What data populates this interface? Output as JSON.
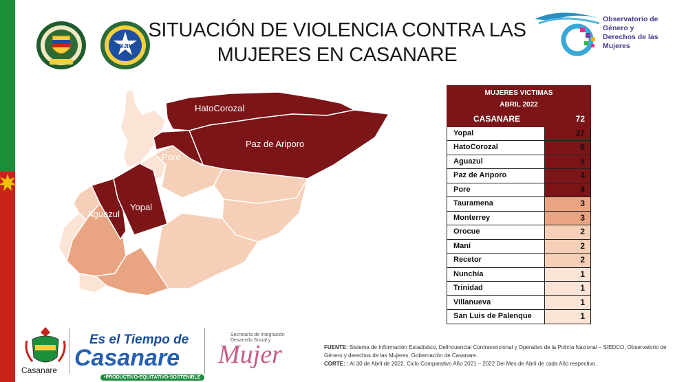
{
  "title": {
    "line1": "SITUACIÓN DE VIOLENCIA CONTRA LAS",
    "line2": "MUJERES EN CASANARE"
  },
  "observatorio": {
    "line1": "Observatorio de",
    "line2": "Género y",
    "line3": "Derechos de las",
    "line4": "Mujeres"
  },
  "emblems": {
    "dijin_label": "DIJIN"
  },
  "map": {
    "labels": {
      "hatocorozal": "HatoCorozal",
      "paz_de_ariporo": "Paz de Ariporo",
      "pore": "Pore",
      "aguazul": "Aguazul",
      "yopal": "Yopal"
    },
    "colors": {
      "high": "#7b1518",
      "mid": "#e9a582",
      "low": "#f2c9ad",
      "lowest": "#fae6da"
    }
  },
  "table": {
    "header_line1": "MUJERES VICTIMAS",
    "header_line2": "ABRIL 2022",
    "total": {
      "name": "CASANARE",
      "value": "72"
    },
    "rows": [
      {
        "name": "Yopal",
        "value": "37",
        "color": "#7b1518"
      },
      {
        "name": "HatoCorozal",
        "value": "6",
        "color": "#7b1518"
      },
      {
        "name": "Aguazul",
        "value": "5",
        "color": "#7b1518"
      },
      {
        "name": "Paz de Ariporo",
        "value": "4",
        "color": "#7b1518"
      },
      {
        "name": "Pore",
        "value": "4",
        "color": "#7b1518"
      },
      {
        "name": "Tauramena",
        "value": "3",
        "color": "#e9a582"
      },
      {
        "name": "Monterrey",
        "value": "3",
        "color": "#e9a582"
      },
      {
        "name": "Orocue",
        "value": "2",
        "color": "#f5cfb7"
      },
      {
        "name": "Maní",
        "value": "2",
        "color": "#f5cfb7"
      },
      {
        "name": "Recetor",
        "value": "2",
        "color": "#f5cfb7"
      },
      {
        "name": "Nunchía",
        "value": "1",
        "color": "#fbe3d6"
      },
      {
        "name": "Trinidad",
        "value": "1",
        "color": "#fbe3d6"
      },
      {
        "name": "Villanueva",
        "value": "1",
        "color": "#fbe3d6"
      },
      {
        "name": "San Luis de Palenque",
        "value": "1",
        "color": "#fbe3d6"
      }
    ]
  },
  "footer": {
    "gob_label": "Casanare",
    "tiempo_line1": "Es el Tiempo de",
    "tiempo_line2": "Casanare",
    "tiempo_line3": "•PRODUCTIVO•EQUITATIVO•SOSTENIBLE",
    "mujer_small": "Secretaría de Integración Desarrollo Social y",
    "mujer_big": "Mujer"
  },
  "note": {
    "fuente_label": "FUENTE:",
    "fuente_text": "Sistema de Información Estadístico, Delincuencial Contravencional y Operativo de la Policía Nacional – SIEDCO, Observatorio de Género y derechos de las Mujeres, Gobernación de Casanare.",
    "corte_label": "CORTE: :",
    "corte_text": "Al 30 de Abril de 2022. Ciclo Comparativo Año 2021 – 2022 Del Mes de Abril de cada Año respectivo."
  }
}
